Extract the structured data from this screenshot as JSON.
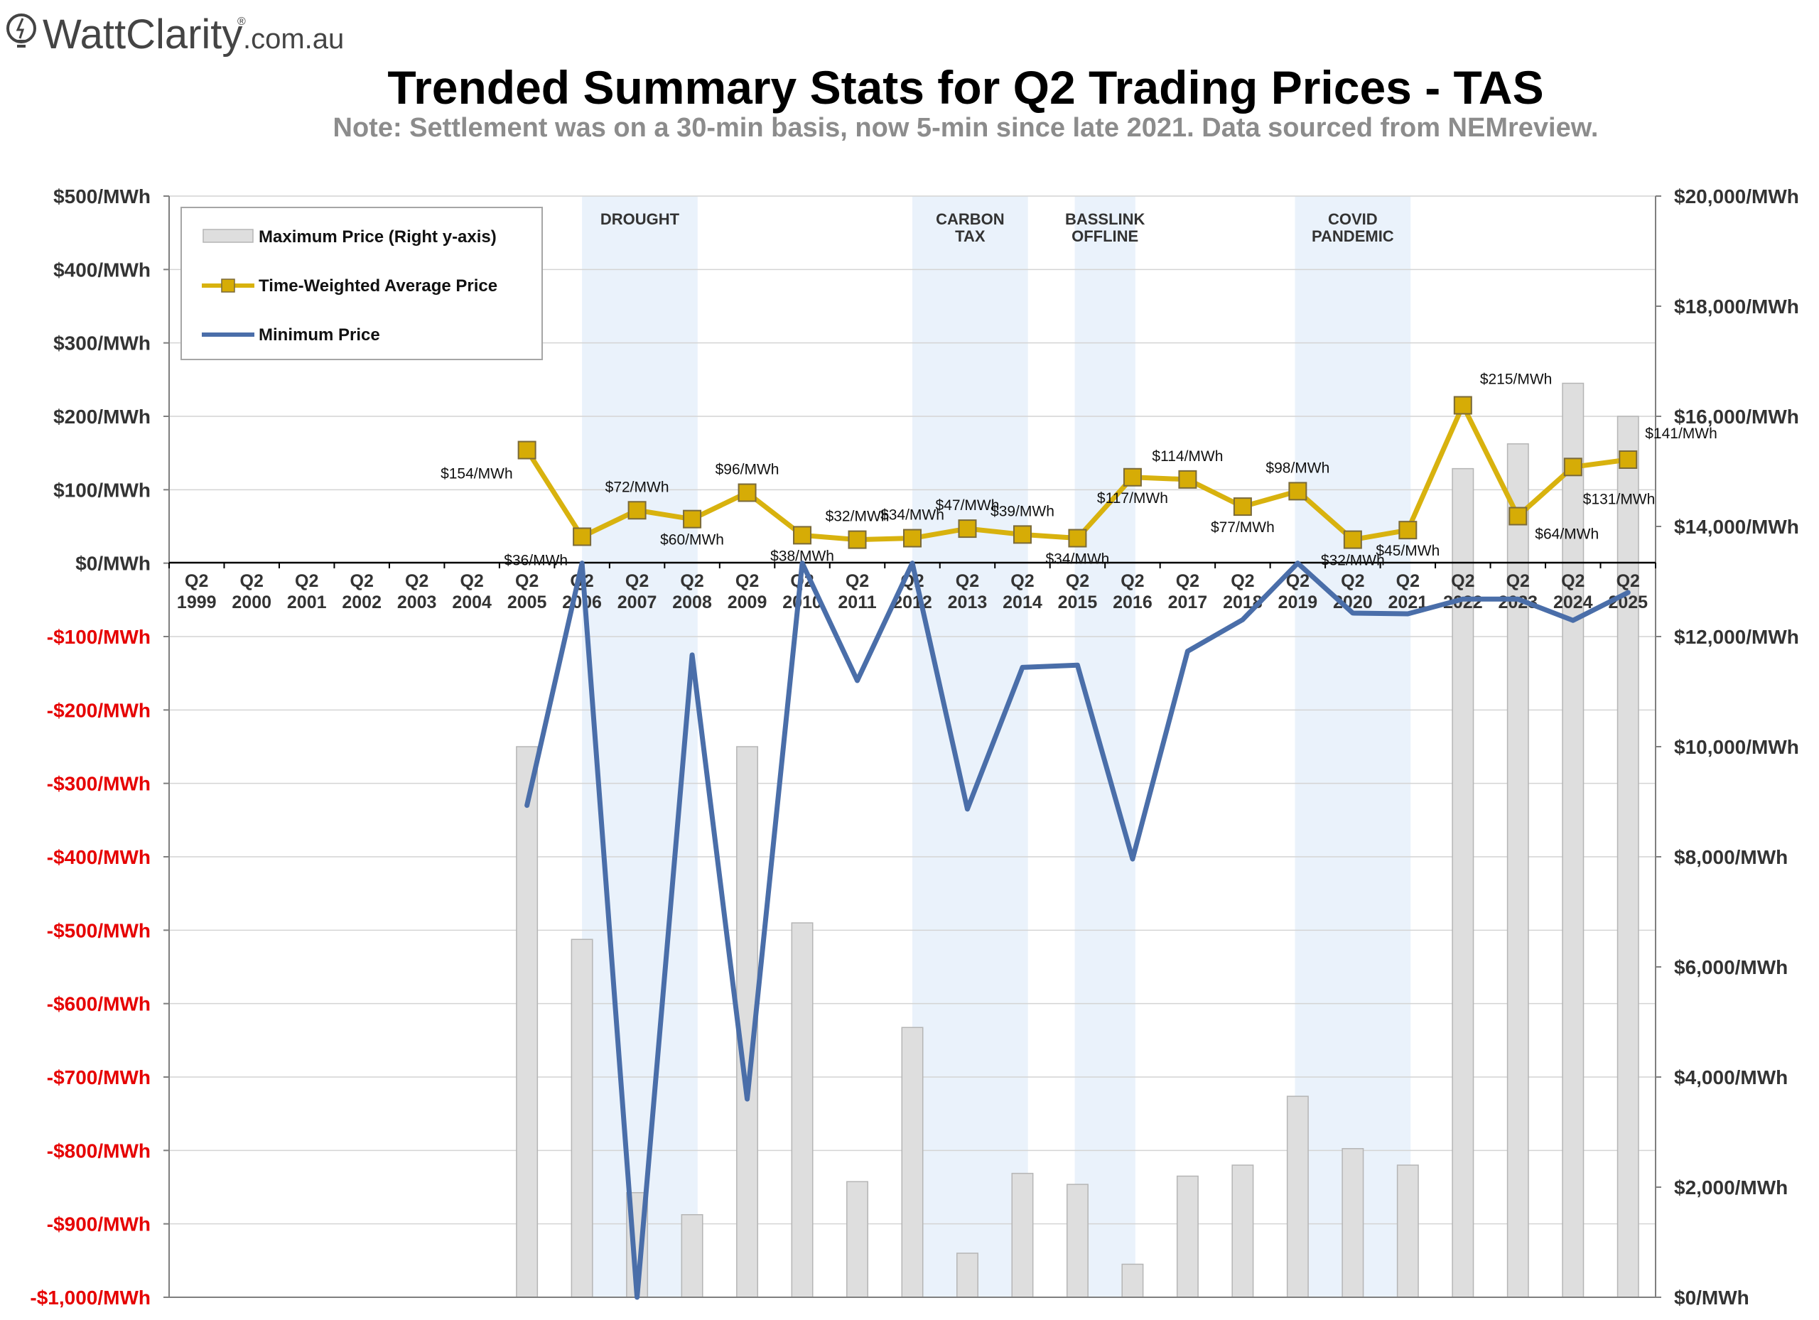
{
  "logo": {
    "brand": "WattClarity",
    "registered": "®",
    "suffix": ".com.au"
  },
  "colors": {
    "max_bar_fill": "#dedede",
    "max_bar_stroke": "#b5b5b5",
    "twap_line": "#d8b20e",
    "twap_marker": "#d6ac06",
    "min_line": "#4a6ea9",
    "band_fill": "#eaf2fb",
    "negative_tick": "#e60000",
    "positive_tick": "#333333"
  },
  "chart_data": {
    "type": "bar+line",
    "title": "Trended Summary Stats for Q2 Trading Prices - TAS",
    "subtitle": "Note: Settlement was on a 30-min basis, now 5-min since late 2021. Data sourced from NEMreview.",
    "categories": [
      [
        "Q2",
        "1999"
      ],
      [
        "Q2",
        "2000"
      ],
      [
        "Q2",
        "2001"
      ],
      [
        "Q2",
        "2002"
      ],
      [
        "Q2",
        "2003"
      ],
      [
        "Q2",
        "2004"
      ],
      [
        "Q2",
        "2005"
      ],
      [
        "Q2",
        "2006"
      ],
      [
        "Q2",
        "2007"
      ],
      [
        "Q2",
        "2008"
      ],
      [
        "Q2",
        "2009"
      ],
      [
        "Q2",
        "2010"
      ],
      [
        "Q2",
        "2011"
      ],
      [
        "Q2",
        "2012"
      ],
      [
        "Q2",
        "2013"
      ],
      [
        "Q2",
        "2014"
      ],
      [
        "Q2",
        "2015"
      ],
      [
        "Q2",
        "2016"
      ],
      [
        "Q2",
        "2017"
      ],
      [
        "Q2",
        "2018"
      ],
      [
        "Q2",
        "2019"
      ],
      [
        "Q2",
        "2020"
      ],
      [
        "Q2",
        "2021"
      ],
      [
        "Q2",
        "2022"
      ],
      [
        "Q2",
        "2023"
      ],
      [
        "Q2",
        "2024"
      ],
      [
        "Q2",
        "2025"
      ]
    ],
    "left_axis": {
      "range": [
        -1000,
        500
      ],
      "step": 100,
      "tick_labels": [
        "$500/MWh",
        "$400/MWh",
        "$300/MWh",
        "$200/MWh",
        "$100/MWh",
        "$0/MWh",
        "-$100/MWh",
        "-$200/MWh",
        "-$300/MWh",
        "-$400/MWh",
        "-$500/MWh",
        "-$600/MWh",
        "-$700/MWh",
        "-$800/MWh",
        "-$900/MWh",
        "-$1,000/MWh"
      ]
    },
    "right_axis": {
      "range": [
        0,
        20000
      ],
      "step": 2000,
      "tick_labels": [
        "$20,000/MWh",
        "$18,000/MWh",
        "$16,000/MWh",
        "$14,000/MWh",
        "$12,000/MWh",
        "$10,000/MWh",
        "$8,000/MWh",
        "$6,000/MWh",
        "$4,000/MWh",
        "$2,000/MWh",
        "$0/MWh"
      ]
    },
    "grid": true,
    "legend_position": "top-left",
    "bands": [
      {
        "label": [
          "DROUGHT"
        ],
        "from": 7.5,
        "to": 9.6
      },
      {
        "label": [
          "CARBON",
          "TAX"
        ],
        "from": 13.5,
        "to": 15.6
      },
      {
        "label": [
          "BASSLINK",
          "OFFLINE"
        ],
        "from": 16.45,
        "to": 17.55
      },
      {
        "label": [
          "COVID",
          "PANDEMIC"
        ],
        "from": 20.45,
        "to": 22.55
      }
    ],
    "series": [
      {
        "name": "Maximum Price (Right y-axis)",
        "type": "bar",
        "axis": "right",
        "values": [
          null,
          null,
          null,
          null,
          null,
          null,
          10000,
          6500,
          1900,
          1500,
          10000,
          6800,
          2100,
          4900,
          800,
          2250,
          2050,
          600,
          2200,
          2400,
          3650,
          2700,
          2400,
          15050,
          15500,
          16600,
          16000
        ]
      },
      {
        "name": "Time-Weighted Average Price",
        "type": "line",
        "axis": "left",
        "values": [
          null,
          null,
          null,
          null,
          null,
          null,
          154,
          36,
          72,
          60,
          96,
          38,
          32,
          34,
          47,
          39,
          34,
          117,
          114,
          77,
          98,
          32,
          45,
          215,
          64,
          131,
          141
        ],
        "labels": [
          null,
          null,
          null,
          null,
          null,
          null,
          "$154/MWh",
          "$36/MWh",
          "$72/MWh",
          "$60/MWh",
          "$96/MWh",
          "$38/MWh",
          "$32/MWh",
          "$34/MWh",
          "$47/MWh",
          "$39/MWh",
          "$34/MWh",
          "$117/MWh",
          "$114/MWh",
          "$77/MWh",
          "$98/MWh",
          "$32/MWh",
          "$45/MWh",
          "$215/MWh",
          "$64/MWh",
          "$131/MWh",
          "$141/MWh"
        ]
      },
      {
        "name": "Minimum Price",
        "type": "line",
        "axis": "left",
        "values": [
          null,
          null,
          null,
          null,
          null,
          null,
          -330,
          0,
          -1000,
          -125,
          -730,
          0,
          -160,
          0,
          -335,
          -142,
          -139,
          -403,
          -120,
          -77,
          0,
          -68,
          -69,
          -49,
          -49,
          -78,
          -40
        ]
      }
    ]
  }
}
